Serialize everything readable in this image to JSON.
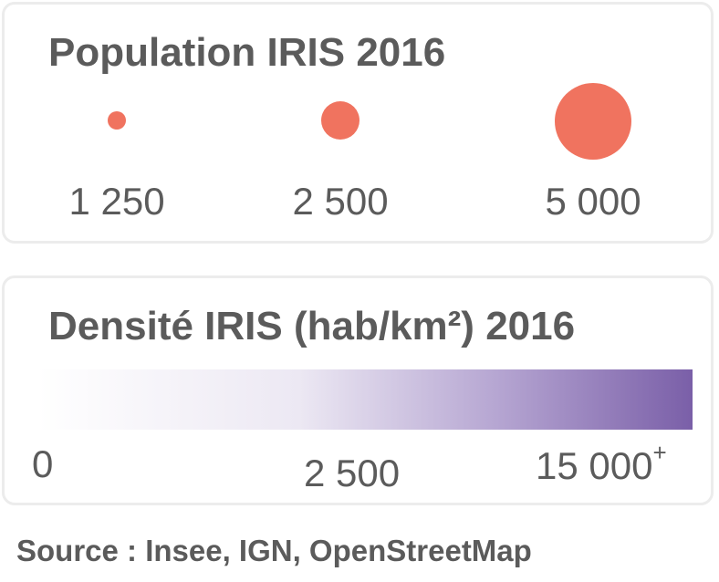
{
  "population_legend": {
    "title": "Population IRIS 2016",
    "color": "#f0735f",
    "items": [
      {
        "value": 1250,
        "label": "1 250"
      },
      {
        "value": 2500,
        "label": "2 500"
      },
      {
        "value": 5000,
        "label": "5 000"
      }
    ]
  },
  "density_legend": {
    "title": "Densité IRIS (hab/km²) 2016",
    "gradient_start": "#ffffff",
    "gradient_end": "#7a5fa8",
    "min_label": "0",
    "mid_label": "2 500",
    "max_label": "15 000",
    "max_suffix": "+"
  },
  "source": "Source : Insee, IGN, OpenStreetMap"
}
